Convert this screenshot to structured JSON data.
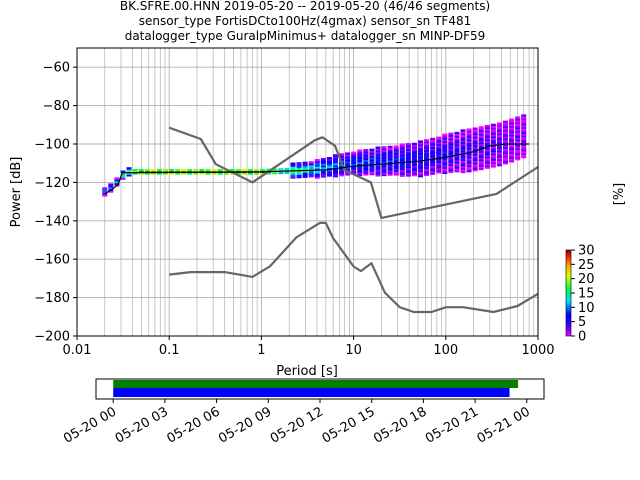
{
  "chart_data": {
    "type": "heatmap",
    "title_lines": [
      "BK.SFRE.00.HNN   2019-05-20 -- 2019-05-20  (46/46 segments)",
      "sensor_type FortisDCto100Hz(4gmax) sensor_sn TF481",
      "datalogger_type GuralpMinimus+ datalogger_sn MINP-DF59"
    ],
    "xlabel": "Period [s]",
    "ylabel": "Power [dB]",
    "x_scale": "log",
    "xlim": [
      0.01,
      1000
    ],
    "ylim": [
      -200,
      -50
    ],
    "grid": true,
    "x_ticks": [
      {
        "value": 0.01,
        "label": "0.01"
      },
      {
        "value": 0.1,
        "label": "0.1"
      },
      {
        "value": 1,
        "label": "1"
      },
      {
        "value": 10,
        "label": "10"
      },
      {
        "value": 100,
        "label": "100"
      },
      {
        "value": 1000,
        "label": "1000"
      }
    ],
    "y_ticks": [
      {
        "value": -60,
        "label": "−60"
      },
      {
        "value": -80,
        "label": "−80"
      },
      {
        "value": -100,
        "label": "−100"
      },
      {
        "value": -120,
        "label": "−120"
      },
      {
        "value": -140,
        "label": "−140"
      },
      {
        "value": -160,
        "label": "−160"
      },
      {
        "value": -180,
        "label": "−180"
      },
      {
        "value": -200,
        "label": "−200"
      }
    ],
    "colorbar": {
      "label": "[%]",
      "range": [
        0,
        30
      ],
      "ticks": [
        {
          "value": 0,
          "label": "0"
        },
        {
          "value": 5,
          "label": "5"
        },
        {
          "value": 10,
          "label": "10"
        },
        {
          "value": 15,
          "label": "15"
        },
        {
          "value": 20,
          "label": "20"
        },
        {
          "value": 25,
          "label": "25"
        },
        {
          "value": 30,
          "label": "30"
        }
      ]
    },
    "nhnm_curve": [
      [
        0.1,
        -91.5
      ],
      [
        0.22,
        -97.4
      ],
      [
        0.32,
        -110.5
      ],
      [
        0.8,
        -120
      ],
      [
        3.8,
        -98
      ],
      [
        4.6,
        -96.5
      ],
      [
        6.3,
        -101
      ],
      [
        7.9,
        -113.5
      ],
      [
        15.4,
        -120
      ],
      [
        20,
        -138.5
      ],
      [
        354.8,
        -126
      ],
      [
        1000,
        -112
      ]
    ],
    "nlnm_curve": [
      [
        0.1,
        -168
      ],
      [
        0.17,
        -166.7
      ],
      [
        0.4,
        -166.7
      ],
      [
        0.8,
        -169.2
      ],
      [
        1.24,
        -163.7
      ],
      [
        2.4,
        -148.6
      ],
      [
        4.3,
        -141.1
      ],
      [
        5,
        -141.1
      ],
      [
        6,
        -149
      ],
      [
        10,
        -163.8
      ],
      [
        12,
        -166.2
      ],
      [
        15.6,
        -162.1
      ],
      [
        21.9,
        -177.5
      ],
      [
        31.6,
        -185
      ],
      [
        45,
        -187.5
      ],
      [
        70,
        -187.5
      ],
      [
        101,
        -185
      ],
      [
        154,
        -185
      ],
      [
        328,
        -187.5
      ],
      [
        600,
        -184.4
      ],
      [
        1000,
        -178
      ]
    ],
    "median_curve": [
      [
        0.02,
        -126
      ],
      [
        0.025,
        -123
      ],
      [
        0.028,
        -121
      ],
      [
        0.031,
        -115
      ],
      [
        1,
        -114.5
      ],
      [
        5,
        -113.5
      ],
      [
        10,
        -111.5
      ],
      [
        20,
        -110.5
      ],
      [
        50,
        -109
      ],
      [
        100,
        -107
      ],
      [
        200,
        -104
      ],
      [
        300,
        -101
      ],
      [
        450,
        -100
      ],
      [
        800,
        -100
      ]
    ],
    "pdf_density": [
      [
        0.02,
        -125,
        12
      ],
      [
        0.025,
        -122,
        10
      ],
      [
        0.03,
        -117,
        14
      ],
      [
        0.035,
        -114.5,
        20
      ],
      [
        0.05,
        -114.5,
        30
      ],
      [
        1,
        -114.5,
        30
      ],
      [
        2,
        -114,
        18
      ],
      [
        4,
        -113,
        12
      ],
      [
        7,
        -111,
        9
      ],
      [
        10,
        -110,
        8
      ],
      [
        20,
        -109,
        7
      ],
      [
        50,
        -108,
        6
      ],
      [
        100,
        -105,
        5
      ],
      [
        200,
        -103,
        4
      ],
      [
        400,
        -100,
        3
      ],
      [
        700,
        -96,
        2
      ]
    ],
    "timeline": {
      "tick_labels": [
        "05-20 00",
        "05-20 03",
        "05-20 06",
        "05-20 09",
        "05-20 12",
        "05-20 15",
        "05-20 18",
        "05-20 21",
        "05-21 00"
      ],
      "range_hours": [
        -1,
        25
      ],
      "data_coverage_hours": [
        0,
        23.5
      ],
      "psd_coverage_hours": [
        0,
        23.0
      ],
      "data_color": "#008000",
      "psd_color": "#0000ff"
    },
    "colors": {
      "curve_model": "#666666",
      "median": "#000000",
      "grid": "#b0b0b0"
    }
  }
}
